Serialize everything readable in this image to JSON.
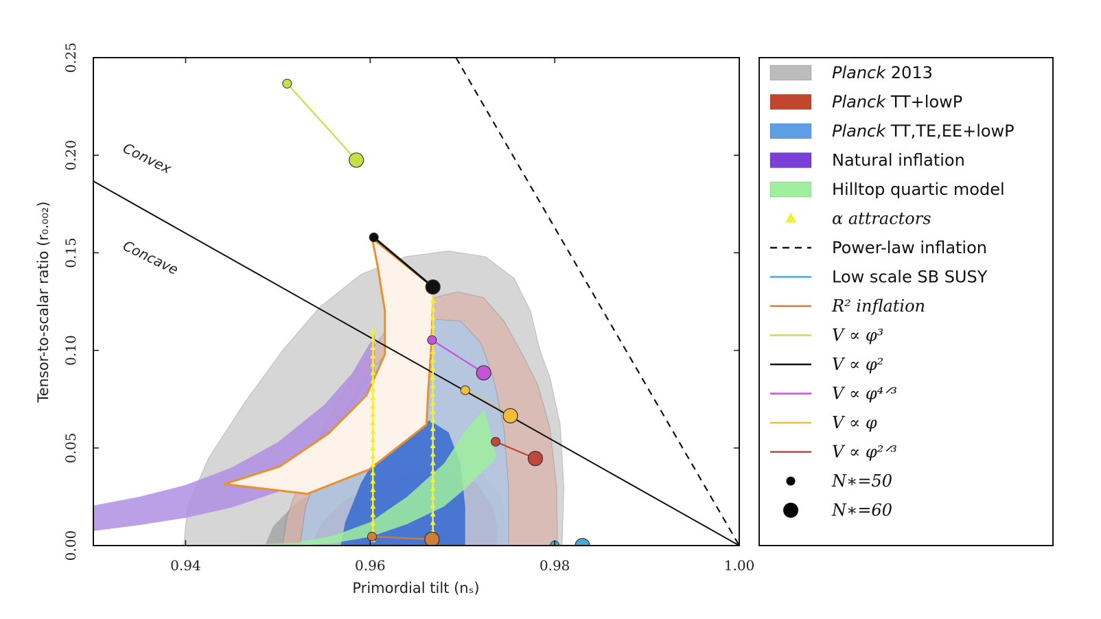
{
  "chart_data": {
    "type": "scatter",
    "xlabel": "Primordial tilt (nₛ)",
    "ylabel": "Tensor-to-scalar ratio (r₀.₀₀₂)",
    "xlim": [
      0.93,
      1.0
    ],
    "ylim": [
      0.0,
      0.25
    ],
    "x_ticks": [
      "0.94",
      "0.96",
      "0.98",
      "1.00"
    ],
    "y_ticks": [
      "0.00",
      "0.05",
      "0.10",
      "0.15",
      "0.20",
      "0.25"
    ],
    "annotations": [
      {
        "text": "Convex",
        "x": 0.9331,
        "y": 0.202
      },
      {
        "text": "Concave",
        "x": 0.9331,
        "y": 0.152
      }
    ],
    "legend": {
      "placement": "outside-right",
      "entries": [
        {
          "key": "planck2013",
          "italic": "Planck",
          "text": " 2013",
          "style": "patch",
          "color": "#bcbcbc"
        },
        {
          "key": "planck_tt",
          "italic": "Planck",
          "text": " TT+lowP",
          "style": "patch",
          "color": "#c0472e"
        },
        {
          "key": "planck_ttteee",
          "italic": "Planck",
          "text": " TT,TE,EE+lowP",
          "style": "patch",
          "color": "#5f9de5"
        },
        {
          "key": "natural",
          "italic": "",
          "text": "Natural inflation",
          "style": "patch",
          "color": "#7a3fd6"
        },
        {
          "key": "hilltop",
          "italic": "",
          "text": "Hilltop quartic model",
          "style": "patch",
          "color": "#9fef9f"
        },
        {
          "key": "alpha",
          "italic": "",
          "text": "α attractors",
          "style": "triangle",
          "color": "#f2ef3a"
        },
        {
          "key": "powerlaw",
          "italic": "",
          "text": "Power-law inflation",
          "style": "dash",
          "color": "#111111"
        },
        {
          "key": "susy",
          "italic": "",
          "text": "Low scale SB SUSY",
          "style": "line",
          "color": "#4aa9d6"
        },
        {
          "key": "r2",
          "italic": "",
          "text": "R² inflation",
          "style": "line",
          "color": "#cf7f3a"
        },
        {
          "key": "phi3",
          "italic": "",
          "text": "V ∝ φ³",
          "style": "line",
          "color": "#c3e04a"
        },
        {
          "key": "phi2",
          "italic": "",
          "text": "V ∝ φ²",
          "style": "line",
          "color": "#111111"
        },
        {
          "key": "phi43",
          "italic": "",
          "text": "V ∝ φ⁴ᐟ³",
          "style": "line",
          "color": "#c554d6"
        },
        {
          "key": "phi1",
          "italic": "",
          "text": "V ∝ φ",
          "style": "line",
          "color": "#f2be3a"
        },
        {
          "key": "phi23",
          "italic": "",
          "text": "V ∝ φ²ᐟ³",
          "style": "line",
          "color": "#c0473a"
        },
        {
          "key": "n50",
          "italic": "",
          "text": "N∗=50",
          "style": "smalldot",
          "color": "#000000"
        },
        {
          "key": "n60",
          "italic": "",
          "text": "N∗=60",
          "style": "bigdot",
          "color": "#000000"
        }
      ]
    },
    "series": [
      {
        "key": "phi3",
        "style": "line-endpoints",
        "color": "#c3e04a",
        "points": [
          [
            0.951,
            0.2367
          ],
          [
            0.9585,
            0.1975
          ]
        ]
      },
      {
        "key": "phi2",
        "style": "line-endpoints",
        "color": "#111111",
        "points": [
          [
            0.9604,
            0.1579
          ],
          [
            0.9668,
            0.1325
          ]
        ]
      },
      {
        "key": "phi43",
        "style": "line-endpoints",
        "color": "#c554d6",
        "points": [
          [
            0.9667,
            0.1053
          ],
          [
            0.9723,
            0.0885
          ]
        ]
      },
      {
        "key": "phi1",
        "style": "line-endpoints",
        "color": "#f2be3a",
        "points": [
          [
            0.9703,
            0.0796
          ],
          [
            0.9752,
            0.0665
          ]
        ]
      },
      {
        "key": "phi23",
        "style": "line-endpoints",
        "color": "#c0473a",
        "points": [
          [
            0.9736,
            0.0532
          ],
          [
            0.9779,
            0.0446
          ]
        ]
      },
      {
        "key": "r2",
        "style": "line-endpoints",
        "color": "#cf7f3a",
        "points": [
          [
            0.9602,
            0.0046
          ],
          [
            0.9667,
            0.0032
          ]
        ]
      },
      {
        "key": "susy",
        "style": "line-endpoints",
        "color": "#4aa9d6",
        "points": [
          [
            0.98,
            0.0
          ],
          [
            0.983,
            0.0
          ]
        ]
      },
      {
        "key": "powerlaw",
        "style": "dashed-line",
        "color": "#111111",
        "points": [
          [
            0.9693,
            0.25
          ],
          [
            1.0,
            0.0
          ]
        ]
      },
      {
        "key": "convexity",
        "style": "line",
        "color": "#111111",
        "points": [
          [
            0.93,
            0.1867
          ],
          [
            1.0,
            0.0
          ]
        ]
      }
    ],
    "regions": [
      {
        "key": "planck2013",
        "color": "#c8c8c8",
        "level": "outer",
        "points": [
          [
            0.9398,
            0.0
          ],
          [
            0.9402,
            0.02
          ],
          [
            0.9425,
            0.045
          ],
          [
            0.9465,
            0.074
          ],
          [
            0.9505,
            0.1
          ],
          [
            0.9545,
            0.122
          ],
          [
            0.959,
            0.139
          ],
          [
            0.9638,
            0.148
          ],
          [
            0.9685,
            0.151
          ],
          [
            0.9725,
            0.148
          ],
          [
            0.9756,
            0.137
          ],
          [
            0.9774,
            0.12
          ],
          [
            0.9784,
            0.1
          ],
          [
            0.9795,
            0.086
          ],
          [
            0.9806,
            0.062
          ],
          [
            0.981,
            0.03
          ],
          [
            0.9808,
            0.0
          ]
        ]
      },
      {
        "key": "planck2013",
        "color": "#a9a9a9",
        "level": "inner",
        "points": [
          [
            0.9486,
            0.0
          ],
          [
            0.9495,
            0.01
          ],
          [
            0.952,
            0.022
          ],
          [
            0.956,
            0.033
          ],
          [
            0.9605,
            0.041
          ],
          [
            0.9645,
            0.046
          ],
          [
            0.9685,
            0.045
          ],
          [
            0.9722,
            0.037
          ],
          [
            0.9743,
            0.025
          ],
          [
            0.9748,
            0.01
          ],
          [
            0.9746,
            0.0
          ]
        ]
      },
      {
        "key": "planck_tt",
        "color": "#d9b3aa",
        "level": "outer",
        "points": [
          [
            0.9505,
            0.0
          ],
          [
            0.951,
            0.015
          ],
          [
            0.9525,
            0.035
          ],
          [
            0.9555,
            0.065
          ],
          [
            0.9585,
            0.09
          ],
          [
            0.962,
            0.112
          ],
          [
            0.966,
            0.126
          ],
          [
            0.9695,
            0.13
          ],
          [
            0.9723,
            0.127
          ],
          [
            0.9745,
            0.115
          ],
          [
            0.9765,
            0.098
          ],
          [
            0.9782,
            0.082
          ],
          [
            0.9795,
            0.06
          ],
          [
            0.9802,
            0.03
          ],
          [
            0.9803,
            0.0
          ]
        ]
      },
      {
        "key": "planck_tt",
        "color": "#c48a7d",
        "level": "inner",
        "points": [
          [
            0.9535,
            0.0
          ],
          [
            0.9548,
            0.012
          ],
          [
            0.9575,
            0.024
          ],
          [
            0.9615,
            0.033
          ],
          [
            0.9655,
            0.038
          ],
          [
            0.969,
            0.038
          ],
          [
            0.9715,
            0.032
          ],
          [
            0.9733,
            0.02
          ],
          [
            0.9738,
            0.008
          ],
          [
            0.9737,
            0.0
          ]
        ]
      },
      {
        "key": "planck_ttteee",
        "color": "#a9c9ec",
        "level": "outer",
        "points": [
          [
            0.9524,
            0.0
          ],
          [
            0.953,
            0.02
          ],
          [
            0.955,
            0.045
          ],
          [
            0.9575,
            0.07
          ],
          [
            0.9605,
            0.092
          ],
          [
            0.9638,
            0.108
          ],
          [
            0.9668,
            0.116
          ],
          [
            0.9698,
            0.115
          ],
          [
            0.972,
            0.104
          ],
          [
            0.9734,
            0.085
          ],
          [
            0.9745,
            0.06
          ],
          [
            0.975,
            0.03
          ],
          [
            0.975,
            0.0
          ]
        ]
      },
      {
        "key": "planck_ttteee",
        "color": "#3d6fd0",
        "level": "inner",
        "points": [
          [
            0.9568,
            0.0
          ],
          [
            0.9573,
            0.012
          ],
          [
            0.959,
            0.032
          ],
          [
            0.9615,
            0.052
          ],
          [
            0.964,
            0.062
          ],
          [
            0.9665,
            0.064
          ],
          [
            0.9685,
            0.058
          ],
          [
            0.9698,
            0.042
          ],
          [
            0.9703,
            0.02
          ],
          [
            0.9703,
            0.0
          ]
        ]
      },
      {
        "key": "natural",
        "color": "#b08fe3",
        "level": "band",
        "upper": [
          [
            0.93,
            0.0205
          ],
          [
            0.935,
            0.025
          ],
          [
            0.94,
            0.031
          ],
          [
            0.945,
            0.04
          ],
          [
            0.95,
            0.053
          ],
          [
            0.955,
            0.072
          ],
          [
            0.958,
            0.088
          ],
          [
            0.9605,
            0.108
          ]
        ],
        "lower": [
          [
            0.93,
            0.0075
          ],
          [
            0.935,
            0.0105
          ],
          [
            0.94,
            0.0142
          ],
          [
            0.945,
            0.0195
          ],
          [
            0.95,
            0.0275
          ],
          [
            0.955,
            0.041
          ],
          [
            0.958,
            0.055
          ],
          [
            0.9605,
            0.073
          ]
        ]
      },
      {
        "key": "hilltop",
        "color": "#9fef9f",
        "level": "band",
        "upper": [
          [
            0.945,
            0.0
          ],
          [
            0.952,
            0.0015
          ],
          [
            0.956,
            0.005
          ],
          [
            0.96,
            0.012
          ],
          [
            0.964,
            0.025
          ],
          [
            0.968,
            0.042
          ],
          [
            0.9705,
            0.06
          ],
          [
            0.9724,
            0.07
          ]
        ],
        "lower": [
          [
            0.945,
            0.0
          ],
          [
            0.952,
            0.0
          ],
          [
            0.956,
            0.0012
          ],
          [
            0.96,
            0.0045
          ],
          [
            0.964,
            0.011
          ],
          [
            0.968,
            0.02
          ],
          [
            0.9705,
            0.03
          ],
          [
            0.9737,
            0.045
          ]
        ]
      },
      {
        "key": "alpha_region",
        "color": "#fdf3ea",
        "level": "outline",
        "points": [
          [
            0.9602,
            0.1575
          ],
          [
            0.9668,
            0.1325
          ],
          [
            0.9668,
            0.125
          ],
          [
            0.9666,
            0.1
          ],
          [
            0.9663,
            0.08
          ],
          [
            0.9661,
            0.062
          ],
          [
            0.9599,
            0.039
          ],
          [
            0.9532,
            0.0265
          ],
          [
            0.9442,
            0.0315
          ],
          [
            0.9502,
            0.0405
          ],
          [
            0.9555,
            0.0575
          ],
          [
            0.9596,
            0.077
          ],
          [
            0.9616,
            0.098
          ],
          [
            0.9616,
            0.12
          ],
          [
            0.9608,
            0.1435
          ]
        ]
      }
    ],
    "triangle_columns": [
      {
        "key": "alpha",
        "x": 0.9603,
        "y_from": 0.003,
        "y_to": 0.11,
        "count": 26
      },
      {
        "key": "alpha",
        "x": 0.9668,
        "y_from": 0.003,
        "y_to": 0.13,
        "count": 30
      }
    ]
  }
}
